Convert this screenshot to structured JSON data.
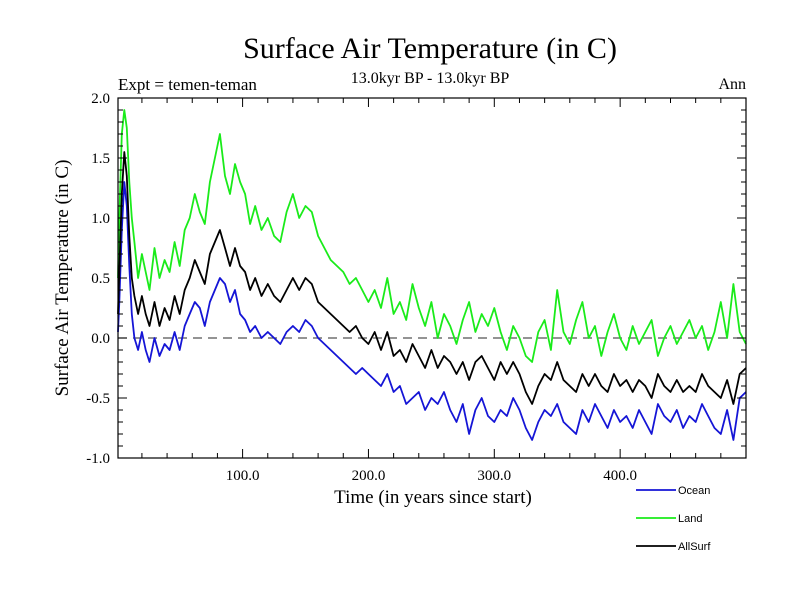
{
  "chart_data": {
    "type": "line",
    "title": "Surface Air Temperature (in C)",
    "subtitle": "13.0kyr BP - 13.0kyr BP",
    "experiment": "Expt = temen-teman",
    "season": "Ann",
    "xlabel": "Time (in years since start)",
    "ylabel": "Surface Air Temperature (in C)",
    "xlim": [
      1,
      500
    ],
    "ylim": [
      -1.0,
      2.0
    ],
    "xticks": [
      100,
      200,
      300,
      400
    ],
    "xtick_labels": [
      "100.0",
      "200.0",
      "300.0",
      "400.0"
    ],
    "yticks": [
      -1.0,
      -0.5,
      0.0,
      0.5,
      1.0,
      1.5,
      2.0
    ],
    "ytick_labels": [
      "-1.0",
      "-0.5",
      "0.0",
      "0.5",
      "1.0",
      "1.5",
      "2.0"
    ],
    "reference_line": 0.0,
    "series": [
      {
        "name": "Ocean",
        "color": "#1515d6",
        "x": [
          1,
          2,
          4,
          6,
          8,
          10,
          12,
          14,
          17,
          20,
          23,
          26,
          30,
          34,
          38,
          42,
          46,
          50,
          54,
          58,
          62,
          66,
          70,
          74,
          78,
          82,
          86,
          90,
          94,
          98,
          102,
          106,
          110,
          115,
          120,
          125,
          130,
          135,
          140,
          145,
          150,
          155,
          160,
          165,
          170,
          175,
          180,
          185,
          190,
          195,
          200,
          205,
          210,
          215,
          220,
          225,
          230,
          235,
          240,
          245,
          250,
          255,
          260,
          265,
          270,
          275,
          280,
          285,
          290,
          295,
          300,
          305,
          310,
          315,
          320,
          325,
          330,
          335,
          340,
          345,
          350,
          355,
          360,
          365,
          370,
          375,
          380,
          385,
          390,
          395,
          400,
          405,
          410,
          415,
          420,
          425,
          430,
          435,
          440,
          445,
          450,
          455,
          460,
          465,
          470,
          475,
          480,
          485,
          490,
          495,
          500
        ],
        "values": [
          0.05,
          0.3,
          0.9,
          1.3,
          1.1,
          0.6,
          0.2,
          0.0,
          -0.1,
          0.05,
          -0.1,
          -0.2,
          0.0,
          -0.15,
          -0.05,
          -0.1,
          0.05,
          -0.1,
          0.1,
          0.2,
          0.3,
          0.25,
          0.1,
          0.3,
          0.4,
          0.5,
          0.45,
          0.3,
          0.4,
          0.2,
          0.15,
          0.05,
          0.1,
          0.0,
          0.05,
          0.0,
          -0.05,
          0.05,
          0.1,
          0.05,
          0.15,
          0.1,
          0.0,
          -0.05,
          -0.1,
          -0.15,
          -0.2,
          -0.25,
          -0.3,
          -0.25,
          -0.3,
          -0.35,
          -0.4,
          -0.3,
          -0.45,
          -0.4,
          -0.55,
          -0.5,
          -0.45,
          -0.6,
          -0.5,
          -0.55,
          -0.45,
          -0.6,
          -0.7,
          -0.55,
          -0.8,
          -0.6,
          -0.5,
          -0.65,
          -0.7,
          -0.6,
          -0.65,
          -0.5,
          -0.6,
          -0.75,
          -0.85,
          -0.7,
          -0.6,
          -0.65,
          -0.55,
          -0.7,
          -0.75,
          -0.8,
          -0.6,
          -0.7,
          -0.55,
          -0.65,
          -0.75,
          -0.6,
          -0.7,
          -0.65,
          -0.75,
          -0.6,
          -0.7,
          -0.8,
          -0.55,
          -0.65,
          -0.7,
          -0.6,
          -0.75,
          -0.65,
          -0.7,
          -0.55,
          -0.65,
          -0.75,
          -0.8,
          -0.6,
          -0.85,
          -0.5,
          -0.45
        ]
      },
      {
        "name": "Land",
        "color": "#1aeb1a",
        "x": [
          1,
          2,
          4,
          6,
          8,
          10,
          12,
          14,
          17,
          20,
          23,
          26,
          30,
          34,
          38,
          42,
          46,
          50,
          54,
          58,
          62,
          66,
          70,
          74,
          78,
          82,
          86,
          90,
          94,
          98,
          102,
          106,
          110,
          115,
          120,
          125,
          130,
          135,
          140,
          145,
          150,
          155,
          160,
          165,
          170,
          175,
          180,
          185,
          190,
          195,
          200,
          205,
          210,
          215,
          220,
          225,
          230,
          235,
          240,
          245,
          250,
          255,
          260,
          265,
          270,
          275,
          280,
          285,
          290,
          295,
          300,
          305,
          310,
          315,
          320,
          325,
          330,
          335,
          340,
          345,
          350,
          355,
          360,
          365,
          370,
          375,
          380,
          385,
          390,
          395,
          400,
          405,
          410,
          415,
          420,
          425,
          430,
          435,
          440,
          445,
          450,
          455,
          460,
          465,
          470,
          475,
          480,
          485,
          490,
          495,
          500
        ],
        "values": [
          0.5,
          1.0,
          1.7,
          1.9,
          1.75,
          1.3,
          1.0,
          0.8,
          0.5,
          0.7,
          0.55,
          0.4,
          0.75,
          0.5,
          0.65,
          0.55,
          0.8,
          0.6,
          0.9,
          1.0,
          1.2,
          1.05,
          0.95,
          1.3,
          1.5,
          1.7,
          1.35,
          1.2,
          1.45,
          1.3,
          1.2,
          0.95,
          1.1,
          0.9,
          1.0,
          0.85,
          0.8,
          1.05,
          1.2,
          1.0,
          1.1,
          1.05,
          0.85,
          0.75,
          0.65,
          0.6,
          0.55,
          0.45,
          0.5,
          0.4,
          0.3,
          0.4,
          0.25,
          0.5,
          0.2,
          0.3,
          0.15,
          0.45,
          0.25,
          0.1,
          0.3,
          0.0,
          0.2,
          0.1,
          -0.05,
          0.15,
          0.3,
          0.05,
          0.2,
          0.1,
          0.25,
          0.05,
          -0.1,
          0.1,
          0.0,
          -0.15,
          -0.2,
          0.05,
          0.15,
          -0.1,
          0.4,
          0.05,
          -0.05,
          0.15,
          0.3,
          0.0,
          0.1,
          -0.15,
          0.05,
          0.2,
          0.0,
          -0.1,
          0.1,
          -0.05,
          0.05,
          0.15,
          -0.15,
          0.0,
          0.1,
          -0.05,
          0.05,
          0.15,
          0.0,
          0.1,
          -0.1,
          0.05,
          0.3,
          0.0,
          0.45,
          0.05,
          -0.05
        ]
      },
      {
        "name": "AllSurf",
        "color": "#000000",
        "x": [
          1,
          2,
          4,
          6,
          8,
          10,
          12,
          14,
          17,
          20,
          23,
          26,
          30,
          34,
          38,
          42,
          46,
          50,
          54,
          58,
          62,
          66,
          70,
          74,
          78,
          82,
          86,
          90,
          94,
          98,
          102,
          106,
          110,
          115,
          120,
          125,
          130,
          135,
          140,
          145,
          150,
          155,
          160,
          165,
          170,
          175,
          180,
          185,
          190,
          195,
          200,
          205,
          210,
          215,
          220,
          225,
          230,
          235,
          240,
          245,
          250,
          255,
          260,
          265,
          270,
          275,
          280,
          285,
          290,
          295,
          300,
          305,
          310,
          315,
          320,
          325,
          330,
          335,
          340,
          345,
          350,
          355,
          360,
          365,
          370,
          375,
          380,
          385,
          390,
          395,
          400,
          405,
          410,
          415,
          420,
          425,
          430,
          435,
          440,
          445,
          450,
          455,
          460,
          465,
          470,
          475,
          480,
          485,
          490,
          495,
          500
        ],
        "values": [
          0.2,
          0.55,
          1.2,
          1.55,
          1.35,
          0.85,
          0.5,
          0.35,
          0.2,
          0.35,
          0.2,
          0.1,
          0.3,
          0.1,
          0.25,
          0.15,
          0.35,
          0.2,
          0.4,
          0.5,
          0.65,
          0.55,
          0.45,
          0.7,
          0.8,
          0.9,
          0.75,
          0.6,
          0.75,
          0.6,
          0.55,
          0.4,
          0.5,
          0.35,
          0.45,
          0.35,
          0.3,
          0.4,
          0.5,
          0.4,
          0.5,
          0.45,
          0.3,
          0.25,
          0.2,
          0.15,
          0.1,
          0.05,
          0.1,
          0.0,
          -0.05,
          0.05,
          -0.1,
          0.05,
          -0.15,
          -0.1,
          -0.2,
          -0.05,
          -0.15,
          -0.25,
          -0.1,
          -0.25,
          -0.15,
          -0.2,
          -0.3,
          -0.2,
          -0.35,
          -0.2,
          -0.15,
          -0.25,
          -0.35,
          -0.2,
          -0.3,
          -0.2,
          -0.3,
          -0.45,
          -0.55,
          -0.4,
          -0.3,
          -0.35,
          -0.2,
          -0.35,
          -0.4,
          -0.45,
          -0.3,
          -0.4,
          -0.3,
          -0.4,
          -0.45,
          -0.3,
          -0.4,
          -0.35,
          -0.45,
          -0.35,
          -0.4,
          -0.5,
          -0.3,
          -0.4,
          -0.45,
          -0.35,
          -0.45,
          -0.4,
          -0.45,
          -0.3,
          -0.4,
          -0.45,
          -0.5,
          -0.35,
          -0.55,
          -0.3,
          -0.25
        ]
      }
    ],
    "legend": [
      "Ocean",
      "Land",
      "AllSurf"
    ],
    "legend_position": "bottom-right"
  }
}
